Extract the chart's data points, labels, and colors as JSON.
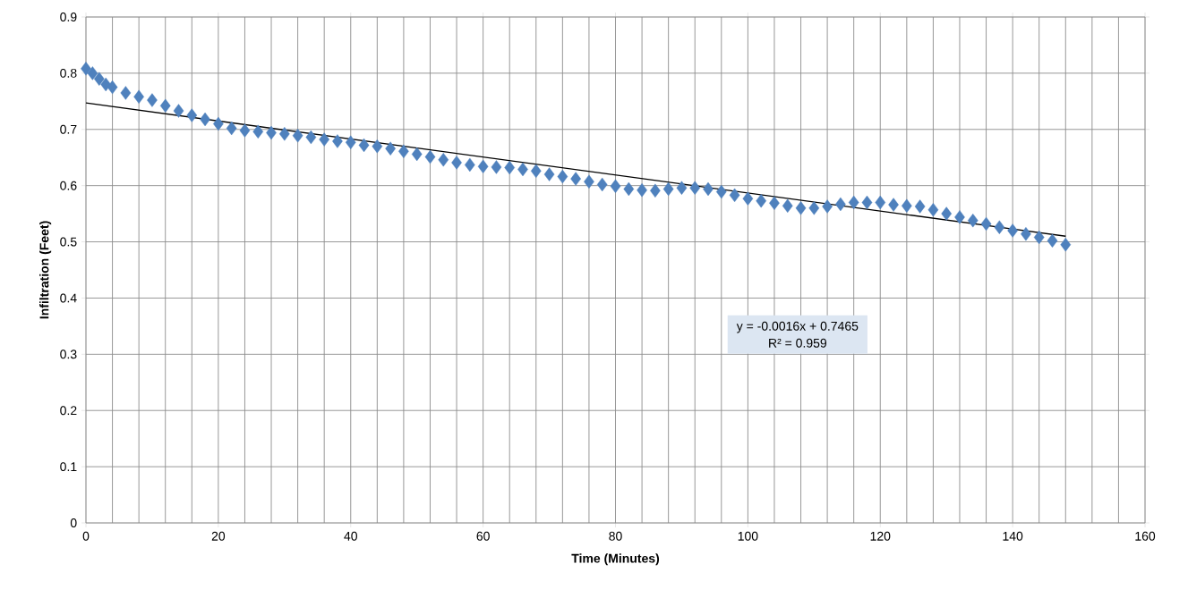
{
  "chart_data": {
    "type": "scatter",
    "xlabel": "Time (Minutes)",
    "ylabel": "Infiltration (Feet)",
    "series": [
      {
        "color": "#4f81bd",
        "marker": "diamond",
        "x": [
          0,
          1,
          2,
          3,
          4,
          6,
          8,
          10,
          12,
          14,
          16,
          18,
          20,
          22,
          24,
          26,
          28,
          30,
          32,
          34,
          36,
          38,
          40,
          42,
          44,
          46,
          48,
          50,
          52,
          54,
          56,
          58,
          60,
          62,
          64,
          66,
          68,
          70,
          72,
          74,
          76,
          78,
          80,
          82,
          84,
          86,
          88,
          90,
          92,
          94,
          96,
          98,
          100,
          102,
          104,
          106,
          108,
          110,
          112,
          114,
          116,
          118,
          120,
          122,
          124,
          126,
          128,
          130,
          132,
          134,
          136,
          138,
          140,
          142,
          144,
          146,
          148
        ],
        "values": [
          0.808,
          0.8,
          0.79,
          0.78,
          0.775,
          0.765,
          0.758,
          0.752,
          0.742,
          0.733,
          0.725,
          0.718,
          0.71,
          0.702,
          0.698,
          0.696,
          0.694,
          0.692,
          0.689,
          0.686,
          0.682,
          0.679,
          0.677,
          0.672,
          0.67,
          0.666,
          0.661,
          0.656,
          0.651,
          0.646,
          0.641,
          0.637,
          0.634,
          0.633,
          0.632,
          0.629,
          0.626,
          0.62,
          0.616,
          0.612,
          0.607,
          0.602,
          0.599,
          0.594,
          0.592,
          0.591,
          0.594,
          0.596,
          0.596,
          0.594,
          0.589,
          0.583,
          0.577,
          0.573,
          0.569,
          0.564,
          0.56,
          0.56,
          0.563,
          0.567,
          0.57,
          0.57,
          0.57,
          0.566,
          0.564,
          0.563,
          0.557,
          0.55,
          0.544,
          0.538,
          0.532,
          0.526,
          0.52,
          0.514,
          0.508,
          0.502,
          0.495
        ]
      },
      {
        "type": "line",
        "color": "#000000",
        "x": [
          0,
          148
        ],
        "values": [
          0.747,
          0.51
        ]
      }
    ],
    "xlim": [
      0,
      160
    ],
    "ylim": [
      0,
      0.9
    ],
    "xticks": [
      0,
      {
        "value": 4,
        "label": null
      },
      {
        "value": 8,
        "label": null
      },
      {
        "value": 12,
        "label": null
      },
      {
        "value": 16,
        "label": null
      },
      20,
      {
        "value": 24,
        "label": null
      },
      {
        "value": 28,
        "label": null
      },
      {
        "value": 32,
        "label": null
      },
      {
        "value": 36,
        "label": null
      },
      40,
      {
        "value": 44,
        "label": null
      },
      {
        "value": 48,
        "label": null
      },
      {
        "value": 52,
        "label": null
      },
      {
        "value": 56,
        "label": null
      },
      60,
      {
        "value": 64,
        "label": null
      },
      {
        "value": 68,
        "label": null
      },
      {
        "value": 72,
        "label": null
      },
      {
        "value": 76,
        "label": null
      },
      80,
      {
        "value": 84,
        "label": null
      },
      {
        "value": 88,
        "label": null
      },
      {
        "value": 92,
        "label": null
      },
      {
        "value": 96,
        "label": null
      },
      100,
      {
        "value": 104,
        "label": null
      },
      {
        "value": 108,
        "label": null
      },
      {
        "value": 112,
        "label": null
      },
      {
        "value": 116,
        "label": null
      },
      120,
      {
        "value": 124,
        "label": null
      },
      {
        "value": 128,
        "label": null
      },
      {
        "value": 132,
        "label": null
      },
      {
        "value": 136,
        "label": null
      },
      140,
      {
        "value": 144,
        "label": null
      },
      {
        "value": 148,
        "label": null
      },
      {
        "value": 152,
        "label": null
      },
      {
        "value": 156,
        "label": null
      },
      160
    ],
    "yticks": [
      0,
      0.1,
      0.2,
      0.3,
      0.4,
      0.5,
      0.6,
      0.7,
      0.8,
      0.9
    ],
    "grid": true,
    "annotations": [
      "y = -0.0016x + 0.7465",
      "R² = 0.959"
    ]
  }
}
